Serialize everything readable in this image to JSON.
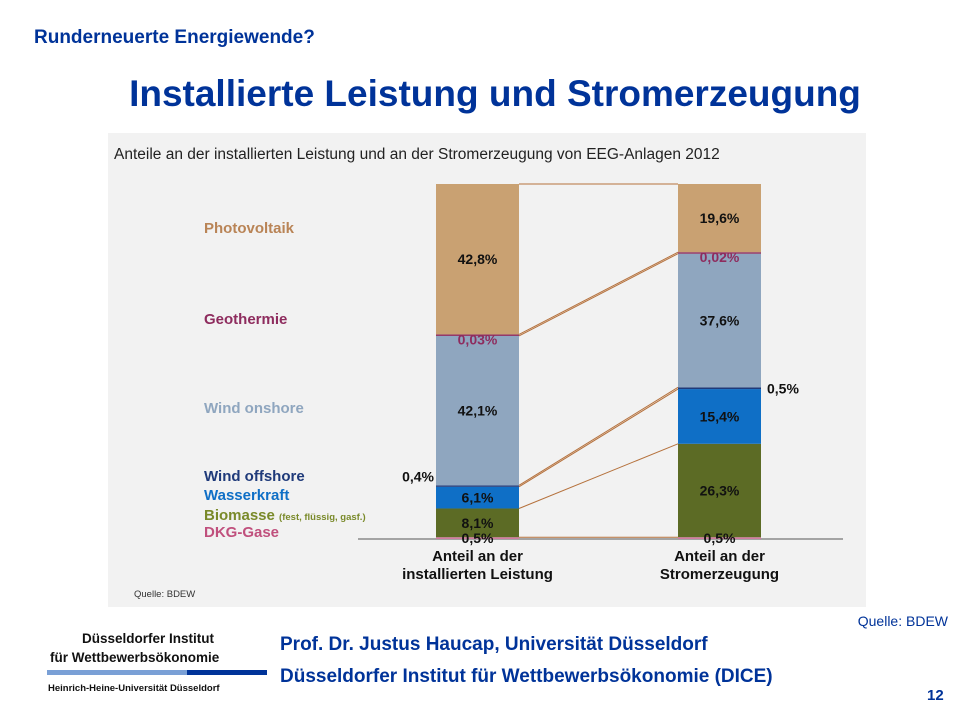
{
  "slide": {
    "header": "Runderneuerte Energiewende?",
    "title": "Installierte Leistung und Stromerzeugung",
    "source": "Quelle: BDEW",
    "presenter": "Prof. Dr. Justus Haucap, Universität Düsseldorf",
    "institute": "Düsseldorfer Institut für Wettbewerbsökonomie (DICE)",
    "page": "12"
  },
  "logo": {
    "line1": "Düsseldorfer Institut",
    "line2": "für Wettbewerbsökonomie",
    "line3": "Heinrich-Heine-Universität Düsseldorf"
  },
  "chart_data": {
    "type": "bar",
    "stacked": true,
    "normalized": true,
    "title": "Anteile an der installierten Leistung und an der Stromerzeugung von EEG-Anlagen 2012",
    "source_note": "Quelle: BDEW",
    "categories": [
      "Anteil an der installierten Leistung",
      "Anteil an der Stromerzeugung"
    ],
    "series": [
      {
        "name": "DKG-Gase",
        "values": [
          0.5,
          0.5
        ],
        "labels": [
          "0,5%",
          "0,5%"
        ],
        "color": "#d27ba0",
        "label_color": "#c0507d"
      },
      {
        "name": "Biomasse (fest, flüssig, gasf.)",
        "values": [
          8.1,
          26.3
        ],
        "labels": [
          "8,1%",
          "26,3%"
        ],
        "color": "#5c6b25",
        "label_color": "#7a8a2a"
      },
      {
        "name": "Wasserkraft",
        "values": [
          6.1,
          15.4
        ],
        "labels": [
          "6,1%",
          "15,4%"
        ],
        "color": "#0f6fc6",
        "label_color": "#0f6fc6"
      },
      {
        "name": "Wind offshore",
        "values": [
          0.4,
          0.5
        ],
        "labels": [
          "0,4%",
          "0,5%"
        ],
        "color": "#1f3a7a",
        "label_color": "#1f3a7a"
      },
      {
        "name": "Wind onshore",
        "values": [
          42.1,
          37.6
        ],
        "labels": [
          "42,1%",
          "37,6%"
        ],
        "color": "#8fa6bf",
        "label_color": "#8fa6bf"
      },
      {
        "name": "Geothermie",
        "values": [
          0.03,
          0.02
        ],
        "labels": [
          "0,03%",
          "0,02%"
        ],
        "color": "#8e2c5e",
        "label_color": "#8e2c5e"
      },
      {
        "name": "Photovoltaik",
        "values": [
          42.8,
          19.6
        ],
        "labels": [
          "42,8%",
          "19,6%"
        ],
        "color": "#c9a172",
        "label_color": "#b98456"
      }
    ]
  },
  "colors": {
    "brand": "#003399",
    "panel": "#f2f2f2",
    "connector": "#b5713c",
    "value_text": "#111111"
  }
}
